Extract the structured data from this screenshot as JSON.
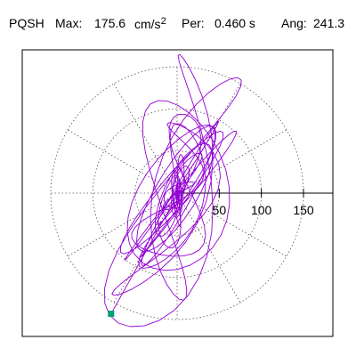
{
  "header": {
    "station": "PQSH",
    "max_label": "Max:",
    "max_value": "175.6",
    "max_unit_base": "cm/s",
    "max_unit_exp": "2",
    "per_label": "Per:",
    "per_value": "0.460 s",
    "ang_label": "Ang:",
    "ang_value": "241.3"
  },
  "colors": {
    "trace": "#9400d3",
    "marker": "#009e73",
    "rings": "#555555",
    "axis": "#000000",
    "frame": "#000000"
  },
  "chart_data": {
    "type": "scatter",
    "subtype": "polar-particle-motion",
    "title": "",
    "xlabel": "",
    "ylabel": "",
    "ring_values": [
      50,
      100,
      150
    ],
    "tick_labels": [
      "50",
      "100",
      "150"
    ],
    "spoke_step_deg": 30,
    "grid": true,
    "rmax": 150,
    "max_amplitude": 175.6,
    "angle_deg": 241.3,
    "marker_shape": "square",
    "n_samples": 800
  }
}
